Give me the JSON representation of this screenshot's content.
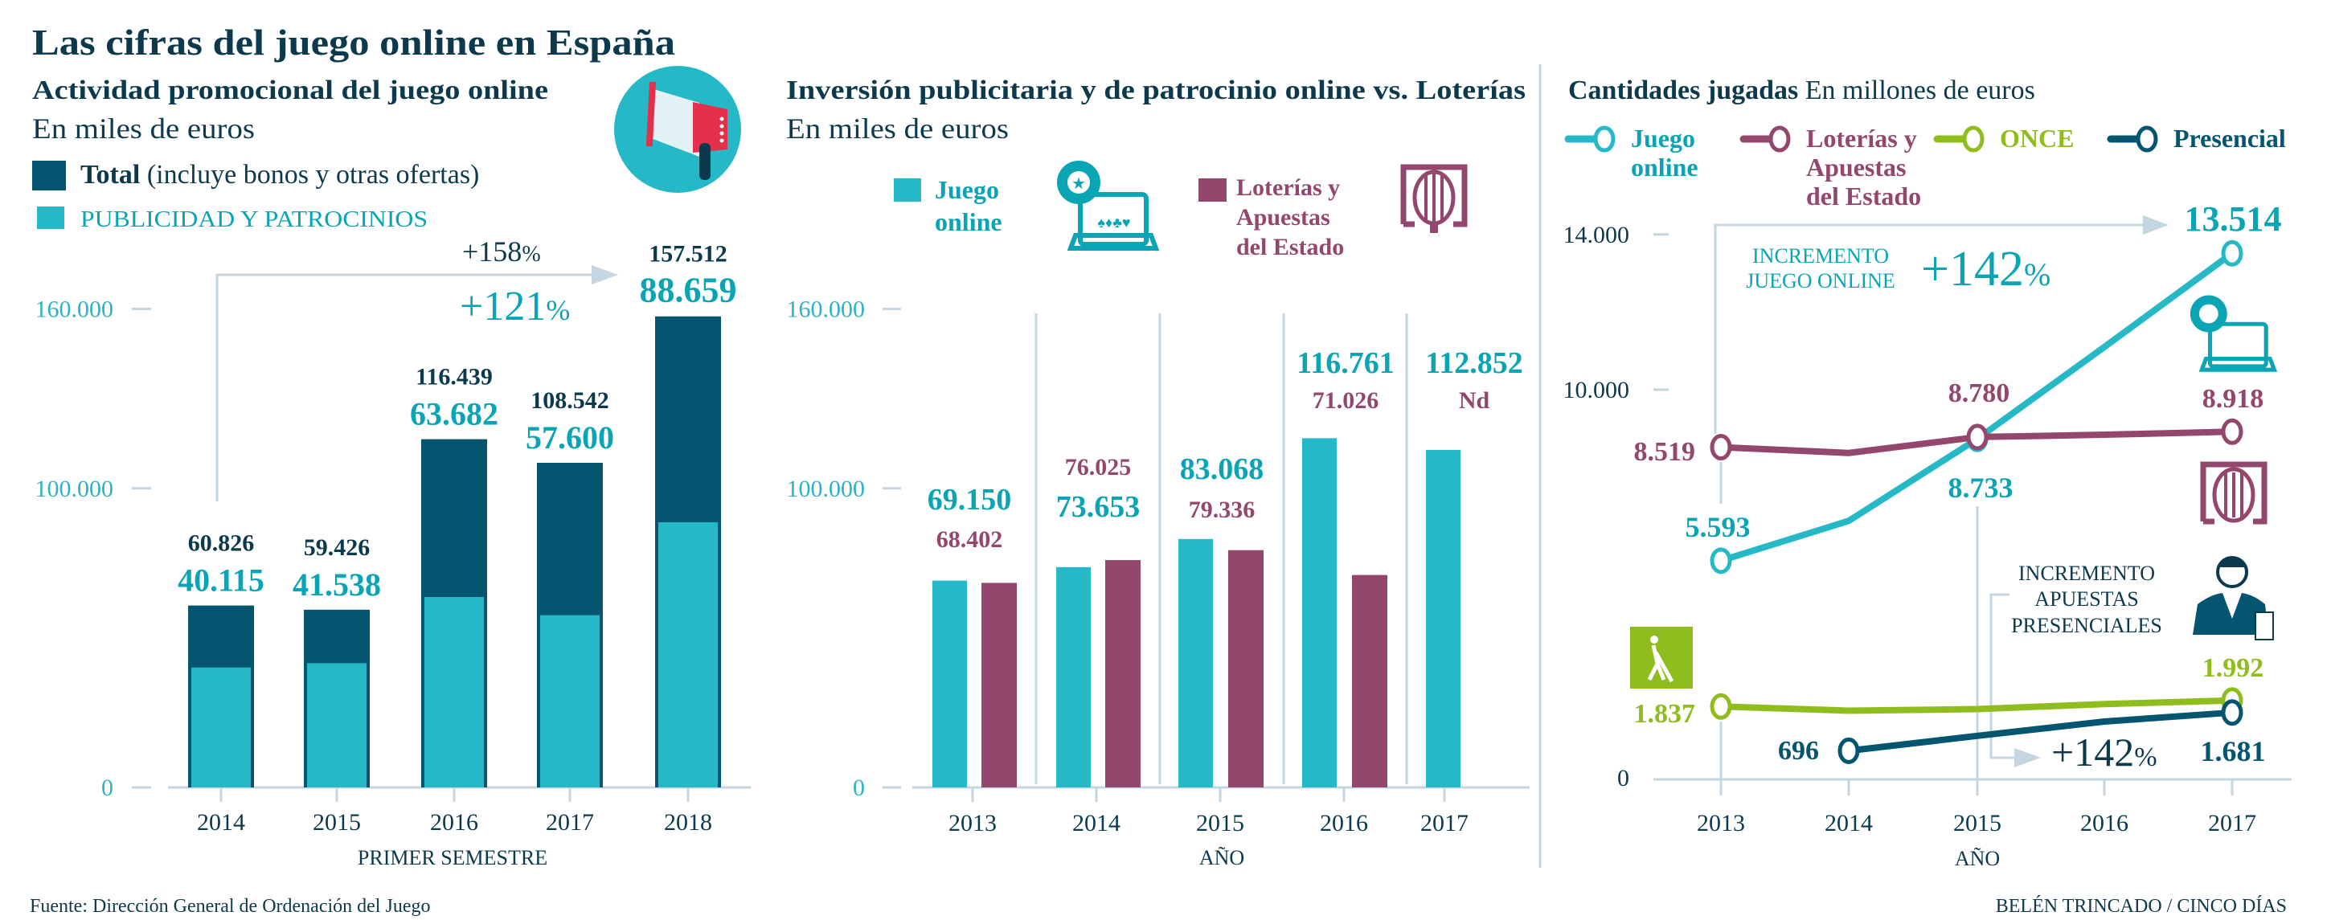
{
  "title": "Las cifras del juego online en España",
  "promo": {
    "heading": "Actividad promocional del juego online",
    "unit": "En miles de euros",
    "growth_total": "+158",
    "growth_pub": "+121",
    "pct": "%"
  },
  "inversion": {
    "heading": "Inversión publicitaria y de patrocinio online vs. Loterías",
    "unit": "En miles de euros",
    "legend_online": [
      "Juego",
      "online"
    ],
    "legend_loterias": [
      "Loterías y",
      "Apuestas",
      "del Estado"
    ]
  },
  "cantidades": {
    "heading_bold": "Cantidades jugadas",
    "heading_rest": "En millones de euros",
    "legend": [
      {
        "lines": [
          "Juego",
          "online"
        ]
      },
      {
        "lines": [
          "Loterías y",
          "Apuestas",
          "del Estado"
        ]
      },
      {
        "lines": [
          "ONCE"
        ]
      },
      {
        "lines": [
          "Presencial"
        ]
      }
    ],
    "annotation_online": [
      "INCREMENTO",
      "JUEGO ONLINE"
    ],
    "growth_online": "+142",
    "annotation_presencial": [
      "INCREMENTO",
      "APUESTAS",
      "PRESENCIALES"
    ],
    "growth_presencial": "+142",
    "pct": "%"
  },
  "footer": {
    "source": "Fuente: Dirección General de Ordenación del Juego",
    "credit": "BELÉN TRINCADO / CINCO DÍAS"
  },
  "colors": {
    "total": "#04556f",
    "publicidad": "#25b8c6",
    "juego_online": "#25b8c6",
    "loterias": "#93476d",
    "once": "#8fbd1e",
    "presencial": "#04556f",
    "text_dark": "#0c3a4c",
    "grid": "#c5d6e1"
  },
  "chart_data": [
    {
      "type": "bar",
      "title": "Actividad promocional del juego online",
      "ylabel": "En miles de euros",
      "xlabel": "PRIMER SEMESTRE",
      "categories": [
        "2014",
        "2015",
        "2016",
        "2017",
        "2018"
      ],
      "series": [
        {
          "name": "Total",
          "name_note": "(incluye bonos y otras ofertas)",
          "values": [
            60826,
            59426,
            116439,
            108542,
            157512
          ],
          "labels": [
            "60.826",
            "59.426",
            "116.439",
            "108.542",
            "157.512"
          ]
        },
        {
          "name": "PUBLICIDAD Y PATROCINIOS",
          "values": [
            40115,
            41538,
            63682,
            57600,
            88659
          ],
          "labels": [
            "40.115",
            "41.538",
            "63.682",
            "57.600",
            "88.659"
          ]
        }
      ],
      "yticks": [
        0,
        100000,
        160000
      ],
      "ytick_labels": [
        "0",
        "100.000",
        "160.000"
      ],
      "ylim": [
        0,
        160000
      ]
    },
    {
      "type": "bar",
      "title": "Inversión publicitaria y de patrocinio online vs. Loterías",
      "ylabel": "En miles de euros",
      "xlabel": "AÑO",
      "categories": [
        "2013",
        "2014",
        "2015",
        "2016",
        "2017"
      ],
      "series": [
        {
          "name": "Juego online",
          "values": [
            69150,
            73653,
            83068,
            116761,
            112852
          ],
          "labels": [
            "69.150",
            "73.653",
            "83.068",
            "116.761",
            "112.852"
          ]
        },
        {
          "name": "Loterías y Apuestas del Estado",
          "values": [
            68402,
            76025,
            79336,
            71026,
            null
          ],
          "labels": [
            "68.402",
            "76.025",
            "79.336",
            "71.026",
            "Nd"
          ]
        }
      ],
      "yticks": [
        0,
        100000,
        160000
      ],
      "ytick_labels": [
        "0",
        "100.000",
        "160.000"
      ],
      "ylim": [
        0,
        160000
      ]
    },
    {
      "type": "line",
      "title": "Cantidades jugadas",
      "ylabel": "En millones de euros",
      "xlabel": "AÑO",
      "x": [
        "2013",
        "2014",
        "2015",
        "2016",
        "2017"
      ],
      "series": [
        {
          "name": "Juego online",
          "values": [
            5593,
            6620,
            8733,
            11100,
            13514
          ],
          "labels": [
            "5.593",
            null,
            "8.733",
            null,
            "13.514"
          ]
        },
        {
          "name": "Loterías y Apuestas del Estado",
          "values": [
            8519,
            8370,
            8780,
            8840,
            8918
          ],
          "labels": [
            "8.519",
            null,
            "8.780",
            null,
            "8.918"
          ]
        },
        {
          "name": "ONCE",
          "values": [
            1837,
            1730,
            1770,
            1900,
            1992
          ],
          "labels": [
            "1.837",
            null,
            null,
            null,
            "1.992"
          ]
        },
        {
          "name": "Presencial",
          "values": [
            null,
            696,
            1080,
            1450,
            1681
          ],
          "labels": [
            null,
            "696",
            null,
            null,
            "1.681"
          ]
        }
      ],
      "yticks": [
        0,
        10000,
        14000
      ],
      "ytick_labels": [
        "0",
        "10.000",
        "14.000"
      ],
      "ylim": [
        0,
        14000
      ]
    }
  ]
}
